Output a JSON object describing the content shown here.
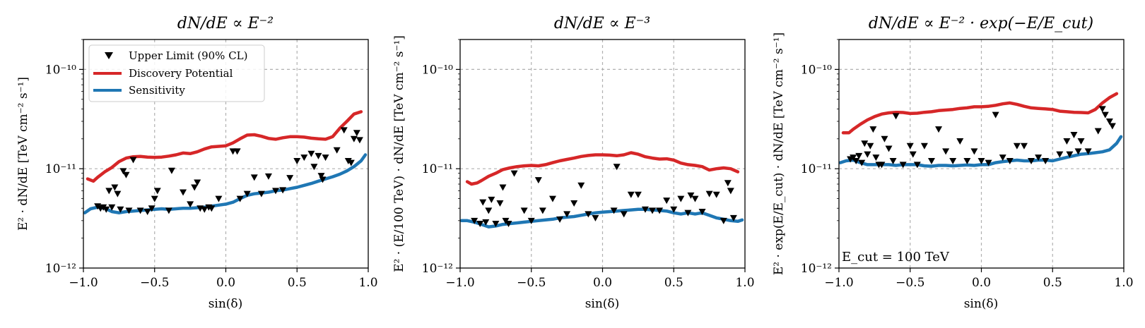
{
  "legend": {
    "upper_limit": "Upper Limit (90% CL)",
    "discovery": "Discovery Potential",
    "sensitivity": "Sensitivity"
  },
  "colors": {
    "discovery": "#d62728",
    "sensitivity": "#1f77b4",
    "markers": "#000000"
  },
  "chart_data": [
    {
      "type": "line",
      "title": "dN/dE ∝ E⁻²",
      "xlabel": "sin(δ)",
      "ylabel": "E² · dN/dE  [TeV cm⁻² s⁻¹]",
      "xlim": [
        -1.0,
        1.0
      ],
      "ylim": [
        1e-12,
        2e-10
      ],
      "yscale": "log",
      "grid": true,
      "legend_position": "top-left",
      "x_ticks": [
        "−1.0",
        "−0.5",
        "0.0",
        "0.5",
        "1.0"
      ],
      "y_ticks": [
        "10⁻¹²",
        "10⁻¹¹",
        "10⁻¹⁰"
      ],
      "annotation": "",
      "series": [
        {
          "name": "Discovery Potential",
          "x": [
            -0.97,
            -0.93,
            -0.9,
            -0.85,
            -0.8,
            -0.75,
            -0.7,
            -0.65,
            -0.6,
            -0.55,
            -0.5,
            -0.45,
            -0.4,
            -0.35,
            -0.3,
            -0.25,
            -0.2,
            -0.15,
            -0.1,
            -0.05,
            0.0,
            0.05,
            0.1,
            0.15,
            0.2,
            0.25,
            0.3,
            0.35,
            0.4,
            0.45,
            0.5,
            0.55,
            0.6,
            0.65,
            0.7,
            0.75,
            0.8,
            0.85,
            0.9,
            0.95
          ],
          "y": [
            7.9e-12,
            7.5e-12,
            8.2e-12,
            9.3e-12,
            1.03e-11,
            1.18e-11,
            1.28e-11,
            1.32e-11,
            1.33e-11,
            1.31e-11,
            1.3e-11,
            1.31e-11,
            1.34e-11,
            1.38e-11,
            1.44e-11,
            1.42e-11,
            1.48e-11,
            1.58e-11,
            1.66e-11,
            1.68e-11,
            1.7e-11,
            1.82e-11,
            2e-11,
            2.18e-11,
            2.2e-11,
            2.12e-11,
            2.02e-11,
            1.98e-11,
            2.05e-11,
            2.1e-11,
            2.1e-11,
            2.08e-11,
            2.03e-11,
            2e-11,
            1.98e-11,
            2.1e-11,
            2.55e-11,
            3e-11,
            3.55e-11,
            3.75e-11
          ]
        },
        {
          "name": "Sensitivity",
          "x": [
            -0.99,
            -0.95,
            -0.9,
            -0.85,
            -0.8,
            -0.75,
            -0.7,
            -0.65,
            -0.6,
            -0.55,
            -0.5,
            -0.45,
            -0.4,
            -0.35,
            -0.3,
            -0.25,
            -0.2,
            -0.15,
            -0.1,
            -0.05,
            0.0,
            0.05,
            0.1,
            0.15,
            0.2,
            0.25,
            0.3,
            0.35,
            0.4,
            0.45,
            0.5,
            0.55,
            0.6,
            0.65,
            0.7,
            0.75,
            0.8,
            0.85,
            0.9,
            0.95,
            0.98
          ],
          "y": [
            3.6e-12,
            3.95e-12,
            4.1e-12,
            4e-12,
            3.7e-12,
            3.6e-12,
            3.7e-12,
            3.75e-12,
            3.8e-12,
            3.85e-12,
            3.9e-12,
            3.95e-12,
            3.9e-12,
            3.95e-12,
            4e-12,
            4e-12,
            4.05e-12,
            4.1e-12,
            4.2e-12,
            4.3e-12,
            4.4e-12,
            4.6e-12,
            5e-12,
            5.4e-12,
            5.6e-12,
            5.7e-12,
            5.8e-12,
            6e-12,
            6.1e-12,
            6.3e-12,
            6.5e-12,
            6.8e-12,
            7.1e-12,
            7.5e-12,
            7.9e-12,
            8.3e-12,
            8.8e-12,
            9.5e-12,
            1.05e-11,
            1.2e-11,
            1.38e-11
          ]
        },
        {
          "name": "Upper Limit (90% CL)",
          "x": [
            -0.9,
            -0.88,
            -0.86,
            -0.84,
            -0.82,
            -0.8,
            -0.78,
            -0.76,
            -0.74,
            -0.72,
            -0.7,
            -0.68,
            -0.65,
            -0.6,
            -0.55,
            -0.52,
            -0.5,
            -0.48,
            -0.4,
            -0.38,
            -0.3,
            -0.25,
            -0.22,
            -0.2,
            -0.18,
            -0.15,
            -0.12,
            -0.1,
            -0.05,
            0.05,
            0.08,
            0.1,
            0.15,
            0.2,
            0.25,
            0.3,
            0.35,
            0.4,
            0.45,
            0.5,
            0.55,
            0.6,
            0.62,
            0.65,
            0.67,
            0.68,
            0.7,
            0.78,
            0.83,
            0.86,
            0.88,
            0.9,
            0.92,
            0.94
          ],
          "y": [
            4.2e-12,
            4e-12,
            4.1e-12,
            3.9e-12,
            6e-12,
            4.1e-12,
            6.5e-12,
            5.6e-12,
            3.9e-12,
            9.5e-12,
            8.7e-12,
            3.8e-12,
            1.23e-11,
            3.8e-12,
            3.7e-12,
            4e-12,
            5e-12,
            6e-12,
            3.8e-12,
            9.6e-12,
            5.8e-12,
            4.4e-12,
            6.5e-12,
            7.3e-12,
            4e-12,
            3.9e-12,
            4.1e-12,
            4e-12,
            5e-12,
            1.5e-11,
            1.5e-11,
            5e-12,
            5.6e-12,
            8.2e-12,
            5.6e-12,
            8.4e-12,
            6e-12,
            6.1e-12,
            8.1e-12,
            1.2e-11,
            1.3e-11,
            1.42e-11,
            1.05e-11,
            1.35e-11,
            8.5e-12,
            7.8e-12,
            1.3e-11,
            1.54e-11,
            2.45e-11,
            1.2e-11,
            1.15e-11,
            2e-11,
            2.3e-11,
            1.95e-11
          ]
        }
      ]
    },
    {
      "type": "line",
      "title": "dN/dE ∝ E⁻³",
      "xlabel": "sin(δ)",
      "ylabel": "E² · (E/100 TeV) · dN/dE  [TeV cm⁻² s⁻¹]",
      "xlim": [
        -1.0,
        1.0
      ],
      "ylim": [
        1e-12,
        2e-10
      ],
      "yscale": "log",
      "grid": true,
      "legend_position": "",
      "x_ticks": [
        "−1.0",
        "−0.5",
        "0.0",
        "0.5",
        "1.0"
      ],
      "y_ticks": [
        "10⁻¹²",
        "10⁻¹¹",
        "10⁻¹⁰"
      ],
      "annotation": "",
      "series": [
        {
          "name": "Discovery Potential",
          "x": [
            -0.95,
            -0.92,
            -0.88,
            -0.85,
            -0.8,
            -0.75,
            -0.7,
            -0.65,
            -0.6,
            -0.55,
            -0.5,
            -0.45,
            -0.4,
            -0.35,
            -0.3,
            -0.25,
            -0.2,
            -0.15,
            -0.1,
            -0.05,
            0.0,
            0.05,
            0.1,
            0.15,
            0.2,
            0.25,
            0.3,
            0.35,
            0.4,
            0.45,
            0.5,
            0.55,
            0.6,
            0.65,
            0.7,
            0.75,
            0.8,
            0.85,
            0.9,
            0.95
          ],
          "y": [
            7.4e-12,
            7e-12,
            7.2e-12,
            7.6e-12,
            8.4e-12,
            9e-12,
            9.8e-12,
            1.02e-11,
            1.05e-11,
            1.07e-11,
            1.08e-11,
            1.07e-11,
            1.1e-11,
            1.15e-11,
            1.2e-11,
            1.24e-11,
            1.28e-11,
            1.33e-11,
            1.36e-11,
            1.38e-11,
            1.38e-11,
            1.37e-11,
            1.35e-11,
            1.38e-11,
            1.45e-11,
            1.4e-11,
            1.32e-11,
            1.28e-11,
            1.25e-11,
            1.26e-11,
            1.22e-11,
            1.14e-11,
            1.1e-11,
            1.08e-11,
            1.05e-11,
            9.7e-12,
            1e-11,
            1.02e-11,
            1e-11,
            9.3e-12
          ]
        },
        {
          "name": "Sensitivity",
          "x": [
            -0.99,
            -0.95,
            -0.9,
            -0.85,
            -0.8,
            -0.75,
            -0.7,
            -0.65,
            -0.6,
            -0.55,
            -0.5,
            -0.45,
            -0.4,
            -0.35,
            -0.3,
            -0.25,
            -0.2,
            -0.15,
            -0.1,
            -0.05,
            0.0,
            0.05,
            0.1,
            0.15,
            0.2,
            0.25,
            0.3,
            0.35,
            0.4,
            0.45,
            0.5,
            0.55,
            0.6,
            0.65,
            0.7,
            0.75,
            0.8,
            0.85,
            0.9,
            0.95,
            0.98
          ],
          "y": [
            3e-12,
            3e-12,
            2.9e-12,
            2.75e-12,
            2.6e-12,
            2.65e-12,
            2.75e-12,
            2.8e-12,
            2.85e-12,
            2.9e-12,
            2.95e-12,
            3e-12,
            3.05e-12,
            3.1e-12,
            3.2e-12,
            3.25e-12,
            3.3e-12,
            3.4e-12,
            3.5e-12,
            3.6e-12,
            3.65e-12,
            3.7e-12,
            3.75e-12,
            3.8e-12,
            3.85e-12,
            3.9e-12,
            3.9e-12,
            3.85e-12,
            3.8e-12,
            3.75e-12,
            3.6e-12,
            3.5e-12,
            3.6e-12,
            3.5e-12,
            3.6e-12,
            3.4e-12,
            3.2e-12,
            3.1e-12,
            3e-12,
            2.95e-12,
            3.05e-12
          ]
        },
        {
          "name": "Upper Limit (90% CL)",
          "x": [
            -0.9,
            -0.86,
            -0.84,
            -0.82,
            -0.8,
            -0.78,
            -0.75,
            -0.72,
            -0.7,
            -0.68,
            -0.66,
            -0.62,
            -0.55,
            -0.5,
            -0.45,
            -0.42,
            -0.35,
            -0.3,
            -0.25,
            -0.2,
            -0.15,
            -0.1,
            -0.05,
            0.08,
            0.1,
            0.15,
            0.2,
            0.25,
            0.3,
            0.35,
            0.4,
            0.45,
            0.5,
            0.55,
            0.6,
            0.62,
            0.65,
            0.7,
            0.75,
            0.8,
            0.85,
            0.88,
            0.9,
            0.92
          ],
          "y": [
            3e-12,
            2.8e-12,
            4.6e-12,
            2.9e-12,
            3.8e-12,
            4.9e-12,
            2.8e-12,
            4.5e-12,
            6.5e-12,
            3e-12,
            2.8e-12,
            9e-12,
            3.8e-12,
            3e-12,
            7.7e-12,
            3.8e-12,
            5e-12,
            3.1e-12,
            3.5e-12,
            4.5e-12,
            6.8e-12,
            3.5e-12,
            3.2e-12,
            3.8e-12,
            1.05e-11,
            3.5e-12,
            5.5e-12,
            5.5e-12,
            3.9e-12,
            3.8e-12,
            3.8e-12,
            4.8e-12,
            3.9e-12,
            5e-12,
            3.6e-12,
            5.4e-12,
            5e-12,
            3.7e-12,
            5.6e-12,
            5.5e-12,
            3e-12,
            7.2e-12,
            6e-12,
            3.2e-12
          ]
        }
      ]
    },
    {
      "type": "line",
      "title": "dN/dE ∝ E⁻² · exp(−E/E_cut)",
      "xlabel": "sin(δ)",
      "ylabel": "E² · exp(E/E_cut) · dN/dE  [TeV cm⁻² s⁻¹]",
      "xlim": [
        -1.0,
        1.0
      ],
      "ylim": [
        1e-12,
        2e-10
      ],
      "yscale": "log",
      "grid": true,
      "legend_position": "",
      "x_ticks": [
        "−1.0",
        "−0.5",
        "0.0",
        "0.5",
        "1.0"
      ],
      "y_ticks": [
        "10⁻¹²",
        "10⁻¹¹",
        "10⁻¹⁰"
      ],
      "annotation": "E_cut = 100 TeV",
      "series": [
        {
          "name": "Discovery Potential",
          "x": [
            -0.97,
            -0.93,
            -0.9,
            -0.85,
            -0.8,
            -0.75,
            -0.7,
            -0.65,
            -0.6,
            -0.55,
            -0.5,
            -0.45,
            -0.4,
            -0.35,
            -0.3,
            -0.25,
            -0.2,
            -0.15,
            -0.1,
            -0.05,
            0.0,
            0.05,
            0.1,
            0.15,
            0.2,
            0.25,
            0.3,
            0.35,
            0.4,
            0.45,
            0.5,
            0.55,
            0.6,
            0.65,
            0.7,
            0.75,
            0.8,
            0.85,
            0.9,
            0.95
          ],
          "y": [
            2.3e-11,
            2.3e-11,
            2.5e-11,
            2.8e-11,
            3.1e-11,
            3.35e-11,
            3.55e-11,
            3.65e-11,
            3.7e-11,
            3.68e-11,
            3.6e-11,
            3.62e-11,
            3.7e-11,
            3.75e-11,
            3.85e-11,
            3.9e-11,
            3.95e-11,
            4.05e-11,
            4.1e-11,
            4.2e-11,
            4.2e-11,
            4.25e-11,
            4.35e-11,
            4.5e-11,
            4.6e-11,
            4.45e-11,
            4.25e-11,
            4.1e-11,
            4.05e-11,
            4e-11,
            3.95e-11,
            3.8e-11,
            3.75e-11,
            3.7e-11,
            3.68e-11,
            3.65e-11,
            3.95e-11,
            4.6e-11,
            5.2e-11,
            5.7e-11
          ]
        },
        {
          "name": "Sensitivity",
          "x": [
            -0.99,
            -0.95,
            -0.9,
            -0.85,
            -0.8,
            -0.75,
            -0.7,
            -0.65,
            -0.6,
            -0.55,
            -0.5,
            -0.45,
            -0.4,
            -0.35,
            -0.3,
            -0.25,
            -0.2,
            -0.15,
            -0.1,
            -0.05,
            0.0,
            0.05,
            0.1,
            0.15,
            0.2,
            0.25,
            0.3,
            0.35,
            0.4,
            0.45,
            0.5,
            0.55,
            0.6,
            0.65,
            0.7,
            0.75,
            0.8,
            0.85,
            0.9,
            0.95,
            0.98
          ],
          "y": [
            1.15e-11,
            1.2e-11,
            1.22e-11,
            1.15e-11,
            1.1e-11,
            1.1e-11,
            1.1e-11,
            1.1e-11,
            1.08e-11,
            1.1e-11,
            1.1e-11,
            1.1e-11,
            1.07e-11,
            1.06e-11,
            1.08e-11,
            1.08e-11,
            1.07e-11,
            1.08e-11,
            1.09e-11,
            1.08e-11,
            1.1e-11,
            1.1e-11,
            1.15e-11,
            1.18e-11,
            1.2e-11,
            1.22e-11,
            1.2e-11,
            1.2e-11,
            1.22e-11,
            1.22e-11,
            1.2e-11,
            1.25e-11,
            1.3e-11,
            1.35e-11,
            1.4e-11,
            1.42e-11,
            1.45e-11,
            1.48e-11,
            1.55e-11,
            1.8e-11,
            2.1e-11
          ]
        },
        {
          "name": "Upper Limit (90% CL)",
          "x": [
            -0.92,
            -0.9,
            -0.88,
            -0.86,
            -0.84,
            -0.82,
            -0.8,
            -0.78,
            -0.76,
            -0.74,
            -0.72,
            -0.7,
            -0.68,
            -0.65,
            -0.62,
            -0.6,
            -0.55,
            -0.5,
            -0.48,
            -0.45,
            -0.4,
            -0.35,
            -0.3,
            -0.25,
            -0.2,
            -0.15,
            -0.1,
            -0.05,
            0.0,
            0.05,
            0.1,
            0.15,
            0.2,
            0.25,
            0.3,
            0.35,
            0.4,
            0.45,
            0.55,
            0.6,
            0.62,
            0.65,
            0.68,
            0.7,
            0.75,
            0.82,
            0.85,
            0.87,
            0.9,
            0.92
          ],
          "y": [
            1.25e-11,
            1.3e-11,
            1.2e-11,
            1.35e-11,
            1.15e-11,
            1.8e-11,
            1.4e-11,
            1.7e-11,
            2.5e-11,
            1.3e-11,
            1.1e-11,
            1.1e-11,
            2e-11,
            1.6e-11,
            1.2e-11,
            3.4e-11,
            1.1e-11,
            1.7e-11,
            1.4e-11,
            1.1e-11,
            1.7e-11,
            1.2e-11,
            2.5e-11,
            1.5e-11,
            1.2e-11,
            1.9e-11,
            1.2e-11,
            1.5e-11,
            1.2e-11,
            1.15e-11,
            3.5e-11,
            1.3e-11,
            1.2e-11,
            1.7e-11,
            1.7e-11,
            1.2e-11,
            1.3e-11,
            1.2e-11,
            1.4e-11,
            1.9e-11,
            1.4e-11,
            2.2e-11,
            1.5e-11,
            1.9e-11,
            1.5e-11,
            2.4e-11,
            4e-11,
            3.5e-11,
            3e-11,
            2.7e-11
          ]
        }
      ]
    }
  ]
}
